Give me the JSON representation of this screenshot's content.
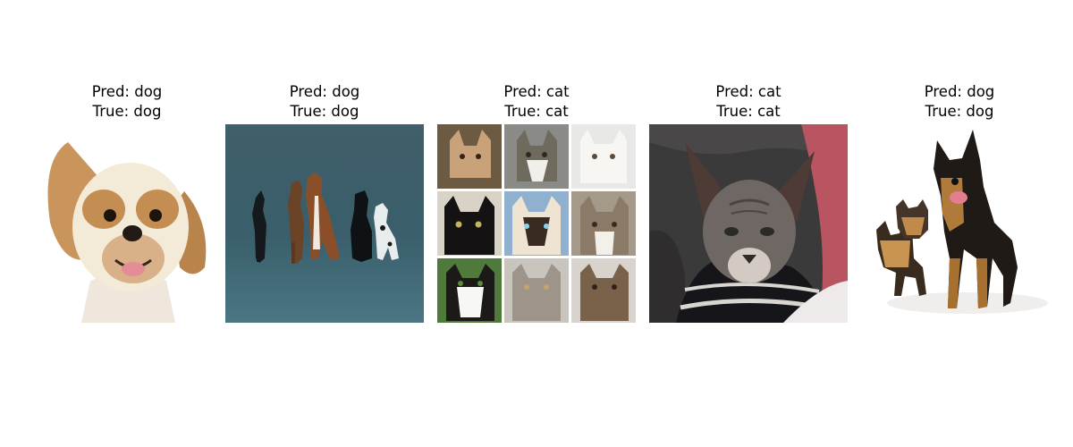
{
  "figure": {
    "panels": [
      {
        "pred_label": "Pred: dog",
        "true_label": "True: dog",
        "content": "dog-shih-tzu-photo",
        "background": "#ffffff"
      },
      {
        "pred_label": "Pred: dog",
        "true_label": "True: dog",
        "content": "five-dogs-sitting-photo",
        "background": "#3d5f6b"
      },
      {
        "pred_label": "Pred: cat",
        "true_label": "True: cat",
        "content": "cat-collage-3x3-photo",
        "background": "#6e6a66"
      },
      {
        "pred_label": "Pred: cat",
        "true_label": "True: cat",
        "content": "sphynx-cat-photo",
        "background": "#3a3838"
      },
      {
        "pred_label": "Pred: dog",
        "true_label": "True: dog",
        "content": "two-dogs-photo",
        "background": "#ffffff"
      }
    ]
  }
}
